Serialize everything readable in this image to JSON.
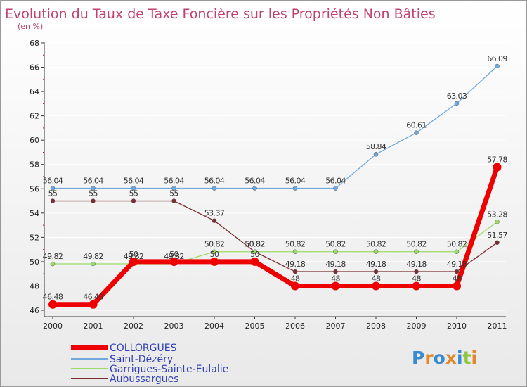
{
  "chart_data": {
    "type": "line",
    "title": "Evolution du Taux de Taxe Foncière sur les Propriétés Non Bâties",
    "subtitle": "(en %)",
    "xlabel": "",
    "ylabel": "",
    "ylim": [
      46,
      68
    ],
    "yticks": [
      "46",
      "48",
      "50",
      "52",
      "54",
      "56",
      "58",
      "60",
      "62",
      "64",
      "66",
      "68"
    ],
    "categories": [
      "2000",
      "2001",
      "2002",
      "2003",
      "2004",
      "2005",
      "2006",
      "2007",
      "2008",
      "2009",
      "2010",
      "2011"
    ],
    "series": [
      {
        "name": "Saint-Dézéry",
        "color": "#6fa8dc",
        "values": [
          56.04,
          56.04,
          56.04,
          56.04,
          56.04,
          56.04,
          56.04,
          56.04,
          58.84,
          60.61,
          63.03,
          66.09
        ],
        "labels": [
          "56.04",
          "56.04",
          "56.04",
          "56.04",
          "56.04",
          "56.04",
          "56.04",
          "56.04",
          "58.84",
          "60.61",
          "63.03",
          "66.09"
        ]
      },
      {
        "name": "Aubussargues",
        "color": "#7b2f33",
        "values": [
          55,
          55,
          55,
          55,
          53.37,
          50.82,
          49.18,
          49.18,
          49.18,
          49.18,
          49.18,
          51.57
        ],
        "labels": [
          "55",
          "55",
          "55",
          "55",
          "53.37",
          "50.82",
          "49.18",
          "49.18",
          "49.18",
          "49.18",
          "49.18",
          "51.57"
        ]
      },
      {
        "name": "Garrigues-Sainte-Eulalie",
        "color": "#99dd66",
        "values": [
          49.82,
          49.82,
          49.82,
          49.82,
          50.82,
          50.82,
          50.82,
          50.82,
          50.82,
          50.82,
          50.82,
          53.28
        ],
        "labels": [
          "49.82",
          "49.82",
          "49.82",
          "49.82",
          "50.82",
          "50.82",
          "50.82",
          "50.82",
          "50.82",
          "50.82",
          "50.82",
          "53.28"
        ]
      },
      {
        "name": "COLLORGUES",
        "color": "#ee0000",
        "values": [
          46.48,
          46.48,
          50,
          50,
          50,
          50,
          48,
          48,
          48,
          48,
          48,
          57.78
        ],
        "labels": [
          "46.48",
          "46.48",
          "50",
          "50",
          "50",
          "50",
          "48",
          "48",
          "48",
          "48",
          "48",
          "57.78"
        ]
      }
    ],
    "legend": [
      "COLLORGUES",
      "Saint-Dézéry",
      "Garrigues-Sainte-Eulalie",
      "Aubussargues"
    ],
    "legend_colors": [
      "#ee0000",
      "#6fa8dc",
      "#99dd66",
      "#7b2f33"
    ],
    "grid": true
  },
  "watermark": "Proxiti"
}
